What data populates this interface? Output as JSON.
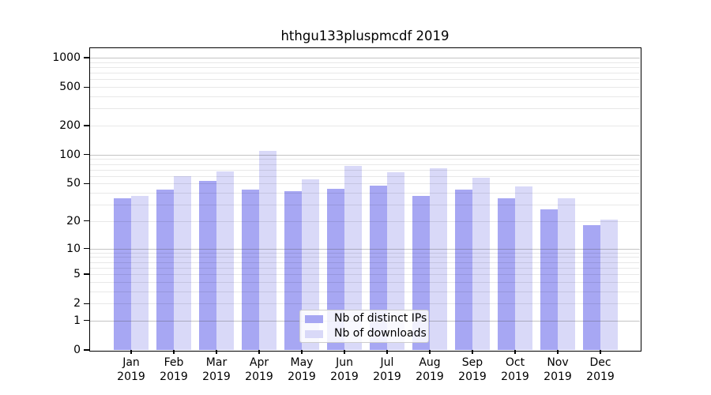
{
  "chart_data": {
    "type": "bar",
    "title": "hthgu133pluspmcdf 2019",
    "categories": [
      "Jan 2019",
      "Feb 2019",
      "Mar 2019",
      "Apr 2019",
      "May 2019",
      "Jun 2019",
      "Jul 2019",
      "Aug 2019",
      "Sep 2019",
      "Oct 2019",
      "Nov 2019",
      "Dec 2019"
    ],
    "series": [
      {
        "name": "Nb of distinct IPs",
        "color": "#a7a7f3",
        "values": [
          35,
          43,
          53,
          43,
          42,
          44,
          48,
          37,
          43,
          35,
          27,
          18
        ]
      },
      {
        "name": "Nb of downloads",
        "color": "#d9d9f8",
        "values": [
          37,
          60,
          67,
          110,
          55,
          77,
          66,
          73,
          58,
          47,
          35,
          21
        ]
      }
    ],
    "yscale": "log1p",
    "yticks": [
      0,
      1,
      2,
      5,
      10,
      20,
      50,
      100,
      200,
      500,
      1000
    ],
    "ylim": [
      0,
      1250
    ],
    "xlabel": "",
    "ylabel": "",
    "grid": true,
    "legend_position": "lower center inside"
  }
}
